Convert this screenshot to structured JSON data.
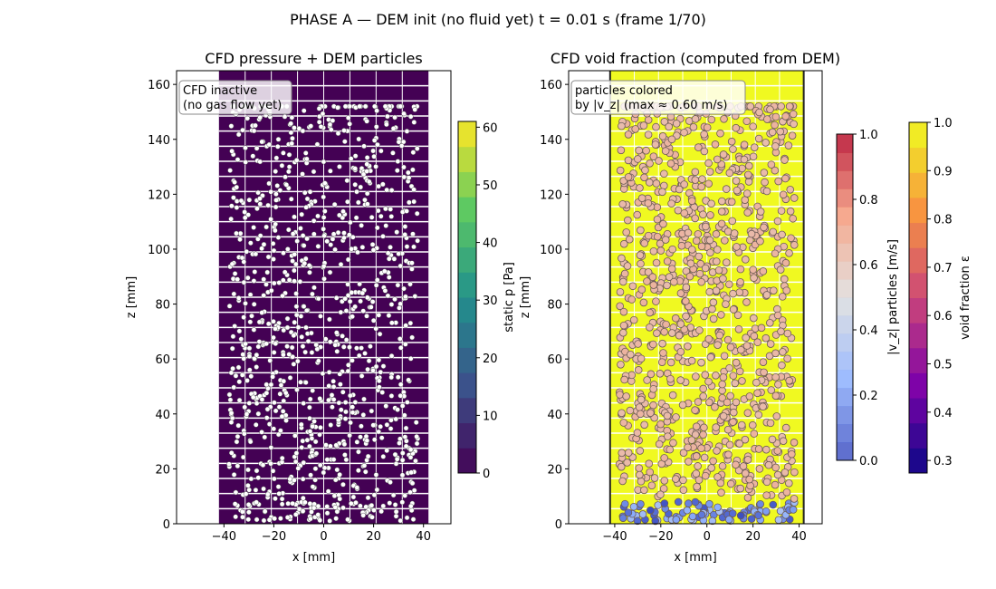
{
  "suptitle": "PHASE A  —  DEM init (no fluid yet)        t =  0.01 s  (frame 1/70)",
  "chart_data": [
    {
      "type": "heatmap",
      "title": "CFD pressure  +  DEM particles",
      "xlabel": "x  [mm]",
      "ylabel": "z  [mm]",
      "xlim": [
        -59,
        51
      ],
      "ylim": [
        0,
        165
      ],
      "xticks": [
        -40,
        -20,
        0,
        20,
        40
      ],
      "yticks": [
        0,
        20,
        40,
        60,
        80,
        100,
        120,
        140,
        160
      ],
      "domain_x": [
        -42,
        42
      ],
      "domain_z": [
        0,
        165
      ],
      "cfd_grid": {
        "nx": 8,
        "nz": 30
      },
      "field_value": 0,
      "annotation": "CFD inactive\n(no gas flow yet)",
      "particles": {
        "count": 1000,
        "color": "#ffffff",
        "edge": "#333333"
      },
      "colorbar": {
        "label": "static p [Pa]",
        "range": [
          0,
          61
        ],
        "ticks": [
          0,
          10,
          20,
          30,
          40,
          50,
          60
        ],
        "colormap": "viridis"
      }
    },
    {
      "type": "heatmap",
      "title": "CFD void fraction (computed from DEM)",
      "xlabel": "x  [mm]",
      "ylabel": "z  [mm]",
      "xlim": [
        -60,
        50
      ],
      "ylim": [
        0,
        165
      ],
      "xticks": [
        -40,
        -20,
        0,
        20,
        40
      ],
      "yticks": [
        0,
        20,
        40,
        60,
        80,
        100,
        120,
        140,
        160
      ],
      "domain_x": [
        -42,
        42
      ],
      "field_value": 1.0,
      "annotation": "particles colored\nby |v_z|  (max ≈ 0.60 m/s)",
      "particles": {
        "count": 1000,
        "colormap": "coolwarm",
        "settled_layer_z_max": 8
      },
      "colorbars": [
        {
          "label": "|v_z| particles [m/s]",
          "range": [
            0,
            1
          ],
          "ticks": [
            "0.0",
            "0.2",
            "0.4",
            "0.6",
            "0.8",
            "1.0"
          ],
          "colormap": "coolwarm"
        },
        {
          "label": "void fraction ε",
          "range": [
            0.274,
            1.0
          ],
          "ticks": [
            "0.3",
            "0.4",
            "0.5",
            "0.6",
            "0.7",
            "0.8",
            "0.9",
            "1.0"
          ],
          "colormap": "plasma"
        }
      ]
    }
  ]
}
